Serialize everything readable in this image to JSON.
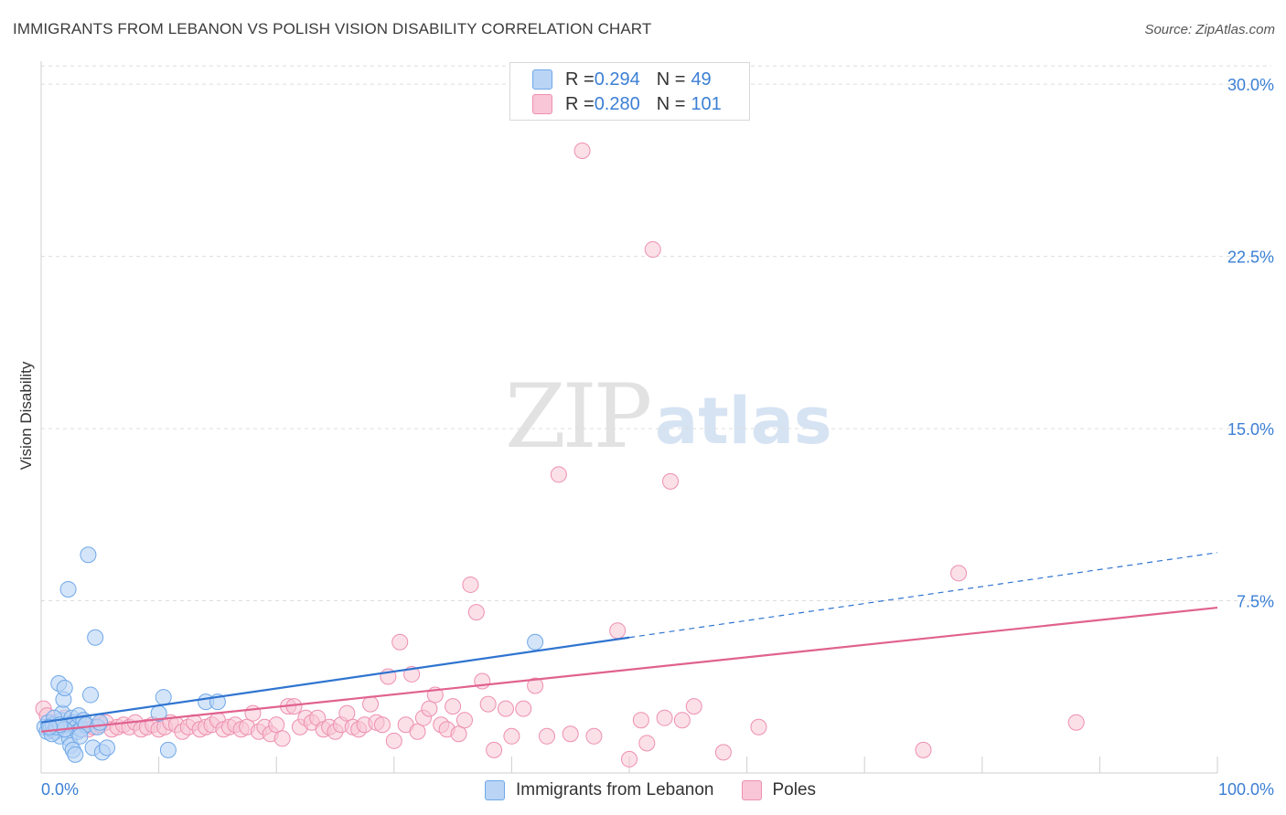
{
  "title": "IMMIGRANTS FROM LEBANON VS POLISH VISION DISABILITY CORRELATION CHART",
  "source": "Source: ZipAtlas.com",
  "watermark": {
    "zip": "ZIP",
    "atlas": "atlas"
  },
  "colors": {
    "series1": "#6fa8e8",
    "series1_fill": "#b9d4f5",
    "series1_line": "#2f74d0",
    "series2": "#ee8fb0",
    "series2_fill": "#f8c6d6",
    "series2_line": "#e0628f",
    "accent_text": "#3b7fd4",
    "grid": "#dddddd"
  },
  "stats": [
    {
      "r_label": "R = ",
      "r_value": "0.294",
      "n_label": "N = ",
      "n_value": "49"
    },
    {
      "r_label": "R = ",
      "r_value": "0.280",
      "n_label": "N = ",
      "n_value": "101"
    }
  ],
  "chart_data": {
    "type": "scatter",
    "title": "IMMIGRANTS FROM LEBANON VS POLISH VISION DISABILITY CORRELATION CHART",
    "xlabel": "",
    "ylabel": "Vision Disability",
    "xlim": [
      0,
      100
    ],
    "ylim": [
      0,
      31
    ],
    "x_tick_labels": [
      "0.0%",
      "100.0%"
    ],
    "y_ticks": [
      7.5,
      15.0,
      22.5,
      30.0
    ],
    "y_tick_labels": [
      "7.5%",
      "15.0%",
      "22.5%",
      "30.0%"
    ],
    "grid": true,
    "legend_position": "bottom-center",
    "series": [
      {
        "name": "Immigrants from Lebanon",
        "trend": {
          "x": [
            0,
            50
          ],
          "y": [
            2.2,
            5.9
          ],
          "dashed_extension": {
            "x": [
              50,
              100
            ],
            "y": [
              5.9,
              9.6
            ]
          }
        },
        "points": [
          [
            0.3,
            2.0
          ],
          [
            0.5,
            1.8
          ],
          [
            0.6,
            2.2
          ],
          [
            0.8,
            1.9
          ],
          [
            1.0,
            2.1
          ],
          [
            1.2,
            1.8
          ],
          [
            1.4,
            2.0
          ],
          [
            1.5,
            3.9
          ],
          [
            1.6,
            1.6
          ],
          [
            1.7,
            2.3
          ],
          [
            1.8,
            2.6
          ],
          [
            1.9,
            3.2
          ],
          [
            2.0,
            3.7
          ],
          [
            2.1,
            1.9
          ],
          [
            2.2,
            2.1
          ],
          [
            2.3,
            8.0
          ],
          [
            2.4,
            1.5
          ],
          [
            2.5,
            1.2
          ],
          [
            2.6,
            2.4
          ],
          [
            2.7,
            1.0
          ],
          [
            2.8,
            2.2
          ],
          [
            2.9,
            0.8
          ],
          [
            3.0,
            2.0
          ],
          [
            3.1,
            1.8
          ],
          [
            3.2,
            2.5
          ],
          [
            3.4,
            1.9
          ],
          [
            3.6,
            2.3
          ],
          [
            3.8,
            2.1
          ],
          [
            4.0,
            9.5
          ],
          [
            4.2,
            3.4
          ],
          [
            4.4,
            1.1
          ],
          [
            4.6,
            5.9
          ],
          [
            4.8,
            2.0
          ],
          [
            5.0,
            2.2
          ],
          [
            5.2,
            0.9
          ],
          [
            5.6,
            1.1
          ],
          [
            10.0,
            2.6
          ],
          [
            10.4,
            3.3
          ],
          [
            10.8,
            1.0
          ],
          [
            14.0,
            3.1
          ],
          [
            15.0,
            3.1
          ],
          [
            42.0,
            5.7
          ],
          [
            1.1,
            2.4
          ],
          [
            0.9,
            1.7
          ],
          [
            1.3,
            2.0
          ],
          [
            3.3,
            1.6
          ],
          [
            2.0,
            1.9
          ],
          [
            1.6,
            2.1
          ],
          [
            0.7,
            2.0
          ]
        ]
      },
      {
        "name": "Poles",
        "trend": {
          "x": [
            0,
            100
          ],
          "y": [
            1.8,
            7.2
          ]
        },
        "points": [
          [
            0.2,
            2.8
          ],
          [
            0.5,
            2.5
          ],
          [
            1.0,
            2.2
          ],
          [
            1.5,
            2.0
          ],
          [
            2.0,
            2.4
          ],
          [
            2.5,
            2.1
          ],
          [
            3.0,
            2.0
          ],
          [
            3.5,
            2.2
          ],
          [
            4.0,
            1.9
          ],
          [
            4.5,
            2.0
          ],
          [
            5.0,
            2.1
          ],
          [
            5.5,
            2.2
          ],
          [
            6.0,
            1.9
          ],
          [
            6.5,
            2.0
          ],
          [
            7.0,
            2.1
          ],
          [
            7.5,
            2.0
          ],
          [
            8.0,
            2.2
          ],
          [
            8.5,
            1.9
          ],
          [
            9.0,
            2.0
          ],
          [
            9.5,
            2.1
          ],
          [
            10.0,
            1.9
          ],
          [
            10.5,
            2.0
          ],
          [
            11.0,
            2.2
          ],
          [
            11.5,
            2.1
          ],
          [
            12.0,
            1.8
          ],
          [
            12.5,
            2.0
          ],
          [
            13.0,
            2.2
          ],
          [
            13.5,
            1.9
          ],
          [
            14.0,
            2.0
          ],
          [
            14.5,
            2.1
          ],
          [
            15.0,
            2.3
          ],
          [
            15.5,
            1.9
          ],
          [
            16.0,
            2.0
          ],
          [
            16.5,
            2.1
          ],
          [
            17.0,
            1.9
          ],
          [
            17.5,
            2.0
          ],
          [
            18.0,
            2.6
          ],
          [
            18.5,
            1.8
          ],
          [
            19.0,
            2.0
          ],
          [
            19.5,
            1.7
          ],
          [
            20.0,
            2.1
          ],
          [
            20.5,
            1.5
          ],
          [
            21.0,
            2.9
          ],
          [
            21.5,
            2.9
          ],
          [
            22.0,
            2.0
          ],
          [
            22.5,
            2.4
          ],
          [
            23.0,
            2.2
          ],
          [
            23.5,
            2.4
          ],
          [
            24.0,
            1.9
          ],
          [
            24.5,
            2.0
          ],
          [
            25.0,
            1.8
          ],
          [
            25.5,
            2.1
          ],
          [
            26.0,
            2.6
          ],
          [
            26.5,
            2.0
          ],
          [
            27.0,
            1.9
          ],
          [
            27.5,
            2.1
          ],
          [
            28.0,
            3.0
          ],
          [
            28.5,
            2.2
          ],
          [
            29.0,
            2.1
          ],
          [
            29.5,
            4.2
          ],
          [
            30.0,
            1.4
          ],
          [
            30.5,
            5.7
          ],
          [
            31.0,
            2.1
          ],
          [
            31.5,
            4.3
          ],
          [
            32.0,
            1.8
          ],
          [
            32.5,
            2.4
          ],
          [
            33.0,
            2.8
          ],
          [
            33.5,
            3.4
          ],
          [
            34.0,
            2.1
          ],
          [
            34.5,
            1.9
          ],
          [
            35.0,
            2.9
          ],
          [
            35.5,
            1.7
          ],
          [
            36.0,
            2.3
          ],
          [
            36.5,
            8.2
          ],
          [
            37.0,
            7.0
          ],
          [
            37.5,
            4.0
          ],
          [
            38.0,
            3.0
          ],
          [
            38.5,
            1.0
          ],
          [
            39.5,
            2.8
          ],
          [
            40.0,
            1.6
          ],
          [
            41.0,
            2.8
          ],
          [
            42.0,
            3.8
          ],
          [
            43.0,
            1.6
          ],
          [
            44.0,
            13.0
          ],
          [
            45.0,
            1.7
          ],
          [
            46.0,
            27.1
          ],
          [
            47.0,
            1.6
          ],
          [
            49.0,
            6.2
          ],
          [
            50.0,
            0.6
          ],
          [
            51.0,
            2.3
          ],
          [
            51.5,
            1.3
          ],
          [
            52.0,
            22.8
          ],
          [
            53.0,
            2.4
          ],
          [
            53.5,
            12.7
          ],
          [
            54.5,
            2.3
          ],
          [
            55.5,
            2.9
          ],
          [
            58.0,
            0.9
          ],
          [
            61.0,
            2.0
          ],
          [
            75.0,
            1.0
          ],
          [
            78.0,
            8.7
          ],
          [
            88.0,
            2.2
          ]
        ]
      }
    ]
  },
  "legend": {
    "items": [
      {
        "label": "Immigrants from Lebanon"
      },
      {
        "label": "Poles"
      }
    ]
  }
}
